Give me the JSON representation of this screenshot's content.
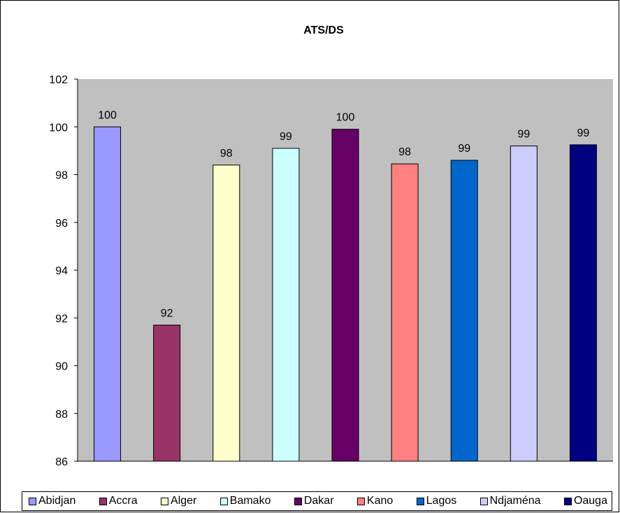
{
  "chart_data": {
    "type": "bar",
    "title": "ATS/DS",
    "xlabel": "",
    "ylabel": "",
    "categories": [
      "Abidjan",
      "Accra",
      "Alger",
      "Bamako",
      "Dakar",
      "Kano",
      "Lagos",
      "Ndjaména",
      "Oauga"
    ],
    "values": [
      100.0,
      91.7,
      98.4,
      99.1,
      99.9,
      98.45,
      98.6,
      99.2,
      99.25
    ],
    "labels": [
      "100",
      "92",
      "98",
      "99",
      "100",
      "98",
      "99",
      "99",
      "99"
    ],
    "colors": [
      "#9999FF",
      "#993366",
      "#FFFFCC",
      "#CCFFFF",
      "#660066",
      "#FF8080",
      "#0066CC",
      "#CCCCFF",
      "#000080"
    ],
    "yticks": [
      "86",
      "88",
      "90",
      "92",
      "94",
      "96",
      "98",
      "100",
      "102"
    ],
    "ylim": [
      86,
      102
    ],
    "grid": false,
    "plot_background": "#C0C0C0",
    "legend_position": "bottom"
  }
}
